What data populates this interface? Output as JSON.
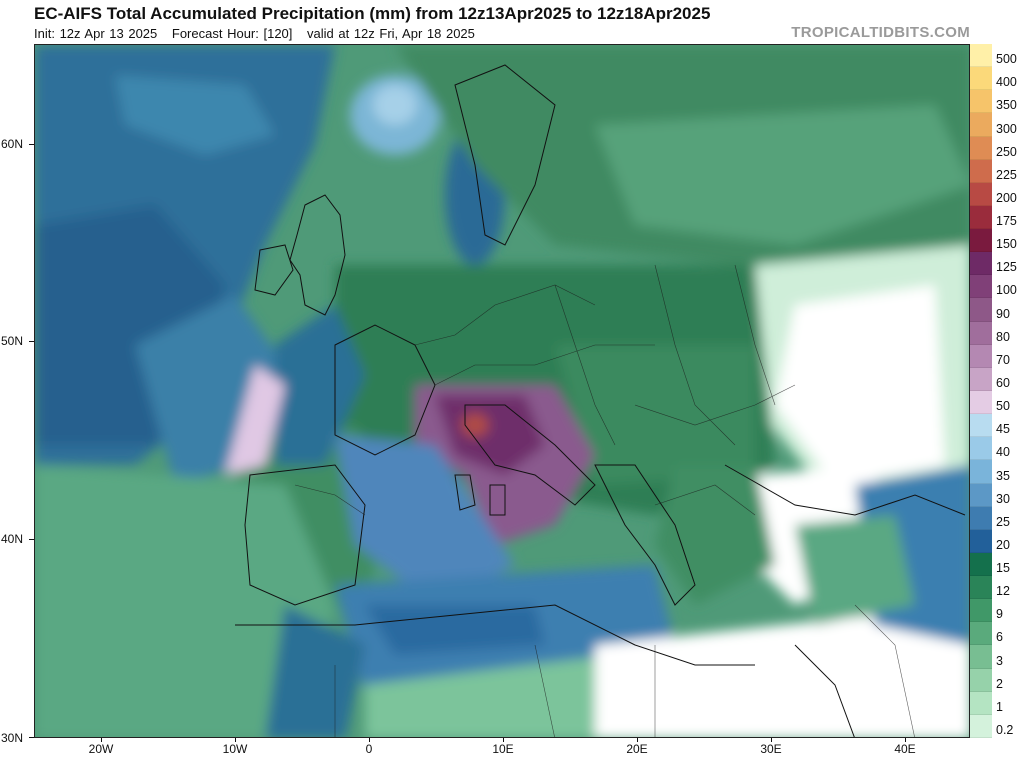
{
  "header": {
    "title": "EC-AIFS Total Accumulated Precipitation (mm) from 12z13Apr2025 to 12z18Apr2025",
    "init": "Init: 12z Apr 13 2025",
    "forecast_hour": "Forecast Hour: [120]",
    "valid": "valid at 12z Fri, Apr 18 2025",
    "watermark": "TROPICALTIDBITS.COM"
  },
  "map": {
    "region": "Europe / Mediterranean",
    "lat_labels": [
      "60N",
      "50N",
      "40N",
      "30N"
    ],
    "lon_labels": [
      "20W",
      "10W",
      "0",
      "10E",
      "20E",
      "30E",
      "40E"
    ]
  },
  "colorbar": {
    "levels": [
      "500",
      "400",
      "350",
      "300",
      "250",
      "225",
      "200",
      "175",
      "150",
      "125",
      "100",
      "90",
      "80",
      "70",
      "60",
      "50",
      "45",
      "40",
      "35",
      "30",
      "25",
      "20",
      "15",
      "12",
      "9",
      "6",
      "3",
      "2",
      "1",
      "0.2"
    ],
    "colors": [
      "#fff0a8",
      "#fbd97a",
      "#f6c46a",
      "#ebaa5e",
      "#df8c54",
      "#cf6c4c",
      "#b84a44",
      "#9a2c3c",
      "#7a1a3e",
      "#6e2a66",
      "#804078",
      "#8e5888",
      "#a06e9c",
      "#b488b2",
      "#c8a4c6",
      "#e4cce4",
      "#b8dcf0",
      "#9acae8",
      "#7ab4da",
      "#5c98c6",
      "#3e7cb0",
      "#22609a",
      "#14704c",
      "#2a8458",
      "#409868",
      "#5aaa7c",
      "#78be92",
      "#96d2aa",
      "#b4e4c2",
      "#d4f2dc"
    ]
  }
}
